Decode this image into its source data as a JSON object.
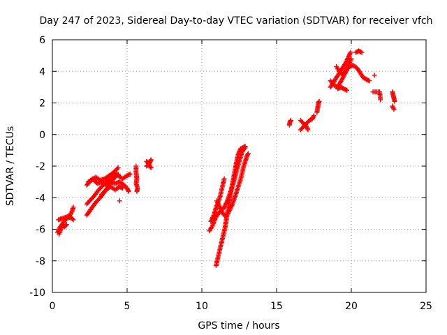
{
  "chart_data": {
    "type": "scatter",
    "title": "Day 247 of 2023, Sidereal Day-to-day VTEC variation (SDTVAR) for receiver vfch",
    "xlabel": "GPS time / hours",
    "ylabel": "SDTVAR / TECUs",
    "xlim": [
      0,
      25
    ],
    "ylim": [
      -10,
      6
    ],
    "xticks": [
      0,
      5,
      10,
      15,
      20,
      25
    ],
    "yticks": [
      -10,
      -8,
      -6,
      -4,
      -2,
      0,
      2,
      4,
      6
    ],
    "grid": true,
    "marker": "+",
    "color": "#ff0000",
    "series": [
      {
        "name": "vfch",
        "segments": [
          [
            [
              0.35,
              -6.2
            ],
            [
              0.5,
              -5.9
            ],
            [
              0.7,
              -5.6
            ],
            [
              0.9,
              -5.4
            ],
            [
              1.1,
              -5.2
            ],
            [
              1.3,
              -4.9
            ],
            [
              1.4,
              -4.6
            ]
          ],
          [
            [
              0.4,
              -5.4
            ],
            [
              0.7,
              -5.3
            ],
            [
              1.0,
              -5.2
            ],
            [
              1.3,
              -5.3
            ],
            [
              1.4,
              -5.4
            ]
          ],
          [
            [
              0.45,
              -6.3
            ],
            [
              0.55,
              -6.0
            ],
            [
              0.65,
              -5.7
            ],
            [
              0.8,
              -5.85
            ],
            [
              0.95,
              -5.7
            ]
          ],
          [
            [
              2.3,
              -5.1
            ],
            [
              2.6,
              -4.7
            ],
            [
              2.9,
              -4.3
            ],
            [
              3.2,
              -4.0
            ],
            [
              3.5,
              -3.6
            ],
            [
              3.8,
              -3.2
            ],
            [
              4.1,
              -2.8
            ],
            [
              4.4,
              -2.5
            ]
          ],
          [
            [
              2.3,
              -4.4
            ],
            [
              2.7,
              -4.0
            ],
            [
              3.1,
              -3.5
            ],
            [
              3.5,
              -3.1
            ],
            [
              3.9,
              -2.7
            ],
            [
              4.2,
              -2.3
            ],
            [
              4.4,
              -2.1
            ]
          ],
          [
            [
              2.3,
              -3.2
            ],
            [
              2.6,
              -2.9
            ],
            [
              2.9,
              -2.7
            ],
            [
              3.2,
              -2.9
            ],
            [
              3.5,
              -2.8
            ],
            [
              3.8,
              -2.6
            ],
            [
              4.1,
              -2.4
            ],
            [
              4.4,
              -2.6
            ],
            [
              4.7,
              -2.8
            ],
            [
              5.0,
              -2.6
            ],
            [
              5.2,
              -2.5
            ]
          ],
          [
            [
              2.4,
              -3.0
            ],
            [
              2.7,
              -2.8
            ],
            [
              3.0,
              -3.1
            ],
            [
              3.3,
              -3.0
            ],
            [
              3.6,
              -3.2
            ],
            [
              3.9,
              -3.0
            ],
            [
              4.2,
              -3.1
            ],
            [
              4.5,
              -3.0
            ],
            [
              4.8,
              -3.2
            ],
            [
              5.0,
              -3.4
            ],
            [
              5.1,
              -3.6
            ]
          ],
          [
            [
              3.3,
              -3.8
            ],
            [
              3.6,
              -3.5
            ],
            [
              3.9,
              -3.3
            ],
            [
              4.2,
              -3.5
            ],
            [
              4.5,
              -3.3
            ],
            [
              4.7,
              -3.4
            ]
          ],
          [
            [
              4.5,
              -4.2
            ]
          ],
          [
            [
              5.6,
              -2.0
            ],
            [
              5.6,
              -2.4
            ],
            [
              5.65,
              -2.8
            ],
            [
              5.6,
              -3.1
            ],
            [
              5.7,
              -3.4
            ],
            [
              5.65,
              -3.6
            ]
          ],
          [
            [
              6.3,
              -1.7
            ],
            [
              6.4,
              -1.8
            ],
            [
              6.5,
              -2.0
            ],
            [
              6.6,
              -2.1
            ]
          ],
          [
            [
              6.3,
              -2.0
            ],
            [
              6.45,
              -1.9
            ],
            [
              6.55,
              -1.7
            ],
            [
              6.6,
              -1.6
            ]
          ],
          [
            [
              10.95,
              -8.3
            ],
            [
              11.1,
              -7.7
            ],
            [
              11.25,
              -7.1
            ],
            [
              11.4,
              -6.5
            ],
            [
              11.55,
              -5.9
            ],
            [
              11.65,
              -5.3
            ],
            [
              11.75,
              -4.7
            ],
            [
              11.85,
              -4.1
            ],
            [
              11.95,
              -3.6
            ],
            [
              12.05,
              -3.1
            ],
            [
              12.15,
              -2.6
            ],
            [
              12.25,
              -2.1
            ],
            [
              12.35,
              -1.6
            ],
            [
              12.45,
              -1.2
            ],
            [
              12.6,
              -0.9
            ],
            [
              12.8,
              -0.8
            ],
            [
              12.9,
              -0.75
            ]
          ],
          [
            [
              11.0,
              -4.2
            ],
            [
              11.2,
              -4.6
            ],
            [
              11.4,
              -5.0
            ],
            [
              11.6,
              -5.2
            ],
            [
              11.8,
              -4.9
            ],
            [
              12.0,
              -4.5
            ],
            [
              12.2,
              -4.0
            ],
            [
              12.4,
              -3.4
            ],
            [
              12.6,
              -2.8
            ],
            [
              12.8,
              -2.0
            ],
            [
              13.0,
              -1.4
            ],
            [
              13.1,
              -1.2
            ]
          ],
          [
            [
              10.5,
              -6.1
            ],
            [
              10.7,
              -5.8
            ],
            [
              10.9,
              -5.3
            ],
            [
              11.1,
              -5.0
            ],
            [
              11.3,
              -4.8
            ],
            [
              11.5,
              -4.6
            ],
            [
              11.7,
              -4.2
            ],
            [
              11.9,
              -3.7
            ],
            [
              12.1,
              -3.1
            ],
            [
              12.3,
              -2.4
            ],
            [
              12.5,
              -1.7
            ],
            [
              12.7,
              -1.1
            ],
            [
              12.9,
              -0.8
            ]
          ],
          [
            [
              10.6,
              -5.5
            ],
            [
              10.8,
              -5.1
            ],
            [
              11.0,
              -4.5
            ],
            [
              11.2,
              -4.0
            ],
            [
              11.4,
              -3.2
            ],
            [
              11.5,
              -2.8
            ]
          ],
          [
            [
              15.85,
              0.6
            ],
            [
              15.9,
              0.8
            ],
            [
              15.95,
              0.9
            ]
          ],
          [
            [
              16.6,
              0.3
            ],
            [
              16.8,
              0.5
            ],
            [
              17.0,
              0.7
            ],
            [
              17.2,
              0.9
            ],
            [
              17.4,
              1.0
            ],
            [
              17.5,
              1.2
            ]
          ],
          [
            [
              16.6,
              0.9
            ],
            [
              16.8,
              0.7
            ],
            [
              17.0,
              0.5
            ],
            [
              17.1,
              0.3
            ]
          ],
          [
            [
              17.7,
              1.4
            ],
            [
              17.75,
              1.7
            ],
            [
              17.8,
              2.0
            ],
            [
              17.85,
              2.1
            ]
          ],
          [
            [
              18.6,
              3.0
            ],
            [
              18.8,
              3.3
            ],
            [
              19.0,
              3.6
            ],
            [
              19.2,
              3.9
            ],
            [
              19.4,
              4.2
            ],
            [
              19.6,
              4.5
            ],
            [
              19.8,
              4.9
            ],
            [
              19.95,
              5.2
            ]
          ],
          [
            [
              18.6,
              3.4
            ],
            [
              18.8,
              3.2
            ],
            [
              19.0,
              3.0
            ],
            [
              19.2,
              3.2
            ],
            [
              19.5,
              3.7
            ],
            [
              19.7,
              4.1
            ],
            [
              19.9,
              4.3
            ],
            [
              20.1,
              4.4
            ],
            [
              20.4,
              4.2
            ],
            [
              20.6,
              3.9
            ],
            [
              20.8,
              3.6
            ],
            [
              21.0,
              3.5
            ],
            [
              21.2,
              3.4
            ]
          ],
          [
            [
              19.0,
              4.3
            ],
            [
              19.2,
              4.0
            ],
            [
              19.4,
              3.8
            ],
            [
              19.6,
              4.0
            ],
            [
              19.8,
              4.4
            ],
            [
              20.0,
              4.8
            ]
          ],
          [
            [
              19.1,
              2.9
            ],
            [
              19.3,
              3.0
            ],
            [
              19.5,
              2.9
            ],
            [
              19.7,
              2.8
            ]
          ],
          [
            [
              20.3,
              5.2
            ],
            [
              20.5,
              5.3
            ],
            [
              20.7,
              5.2
            ]
          ],
          [
            [
              21.55,
              3.75
            ]
          ],
          [
            [
              21.45,
              2.7
            ],
            [
              21.9,
              2.7
            ],
            [
              21.95,
              2.2
            ]
          ],
          [
            [
              22.75,
              2.7
            ],
            [
              22.8,
              2.5
            ],
            [
              22.85,
              2.3
            ],
            [
              22.9,
              2.1
            ]
          ],
          [
            [
              22.75,
              1.8
            ],
            [
              22.85,
              1.6
            ]
          ]
        ]
      }
    ]
  }
}
